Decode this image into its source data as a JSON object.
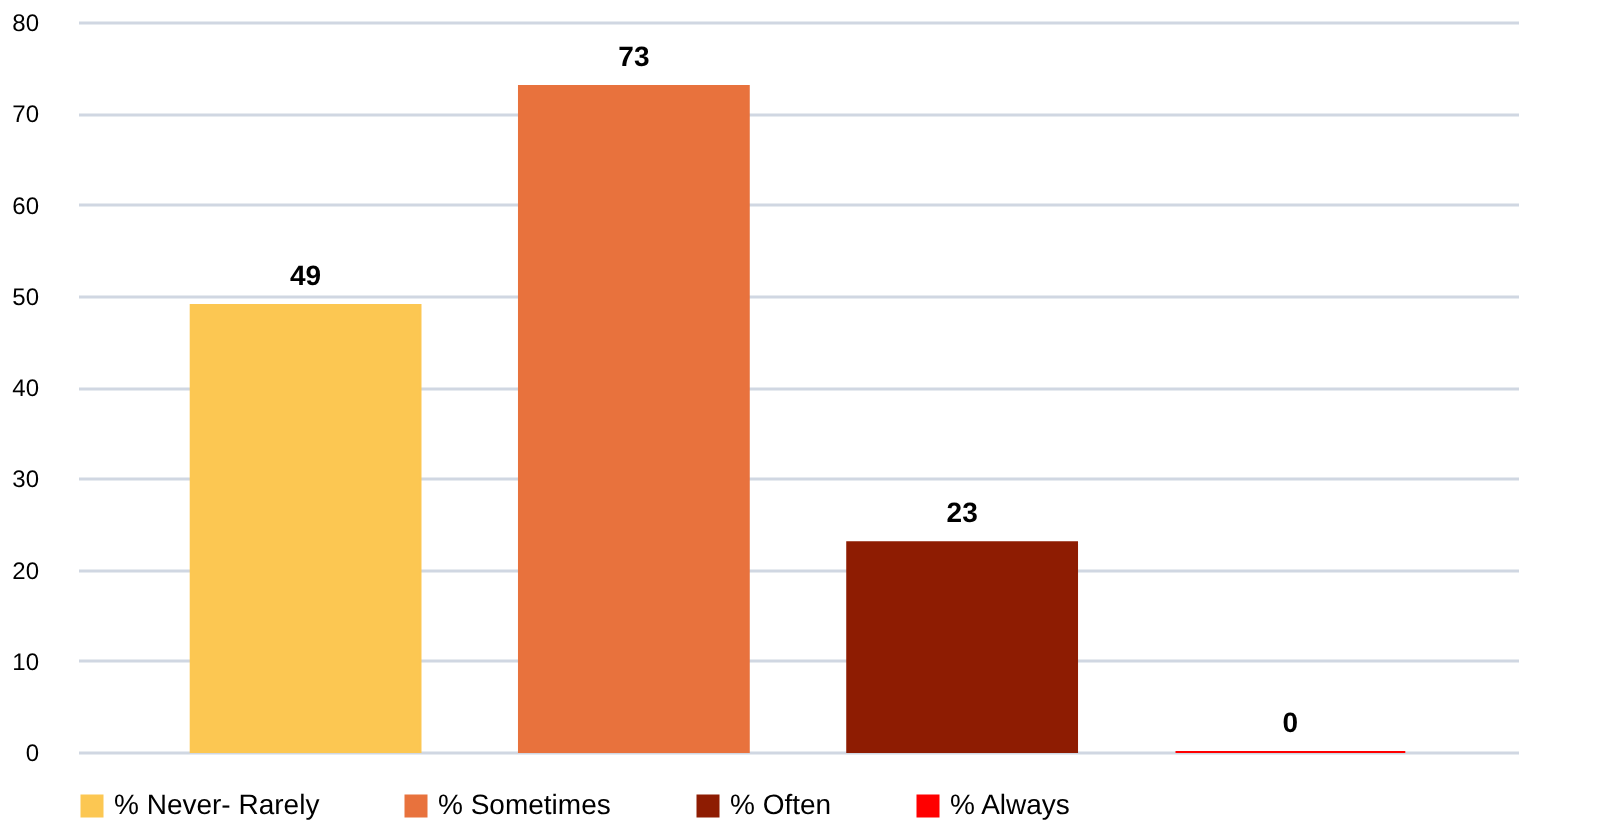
{
  "chart_data": {
    "type": "bar",
    "categories": [
      null
    ],
    "series": [
      {
        "name": "% Never- Rarely",
        "color": "#fcc752",
        "values": [
          49
        ]
      },
      {
        "name": "% Sometimes",
        "color": "#e8723d",
        "values": [
          73
        ]
      },
      {
        "name": "% Often",
        "color": "#8e1c02",
        "values": [
          23
        ]
      },
      {
        "name": "% Always",
        "color": "#ff0000",
        "values": [
          0
        ]
      }
    ],
    "ylim": [
      0,
      80
    ],
    "yticks": [
      0,
      10,
      20,
      30,
      40,
      50,
      60,
      70,
      80
    ],
    "grid": "y",
    "legend": "bottom",
    "data_labels": true
  }
}
